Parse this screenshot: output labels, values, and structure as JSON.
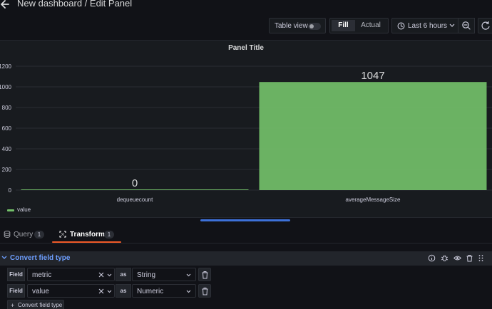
{
  "header": {
    "title": "New dashboard / Edit Panel"
  },
  "toolbar": {
    "table_view_label": "Table view",
    "table_view_on": false,
    "fill_label": "Fill",
    "actual_label": "Actual",
    "time_range_label": "Last 6 hours"
  },
  "panel": {
    "title": "Panel Title"
  },
  "chart_data": {
    "type": "bar",
    "title": "Panel Title",
    "categories": [
      "dequeuecount",
      "averageMessageSize"
    ],
    "series": [
      {
        "name": "value",
        "values": [
          0,
          1047
        ],
        "color": "#73bf69"
      }
    ],
    "value_labels": [
      "0",
      "1047"
    ],
    "ylim": [
      0,
      1200
    ],
    "yticks": [
      "0",
      "200",
      "400",
      "600",
      "800",
      "1000",
      "1200"
    ],
    "grid": true,
    "legend_position": "bottom-left"
  },
  "legend": {
    "label": "value",
    "color": "#73bf69"
  },
  "tabs": [
    {
      "label": "Query",
      "count": "1"
    },
    {
      "label": "Transform",
      "count": "1"
    }
  ],
  "transform": {
    "title": "Convert field type",
    "field_label": "Field",
    "as_label": "as",
    "rows": [
      {
        "field": "metric",
        "type": "String"
      },
      {
        "field": "value",
        "type": "Numeric"
      }
    ],
    "add_label": "Convert field type"
  },
  "colors": {
    "accent_orange": "#f05a28",
    "accent_blue": "#6e9fff",
    "bar_green": "#73bf69"
  }
}
